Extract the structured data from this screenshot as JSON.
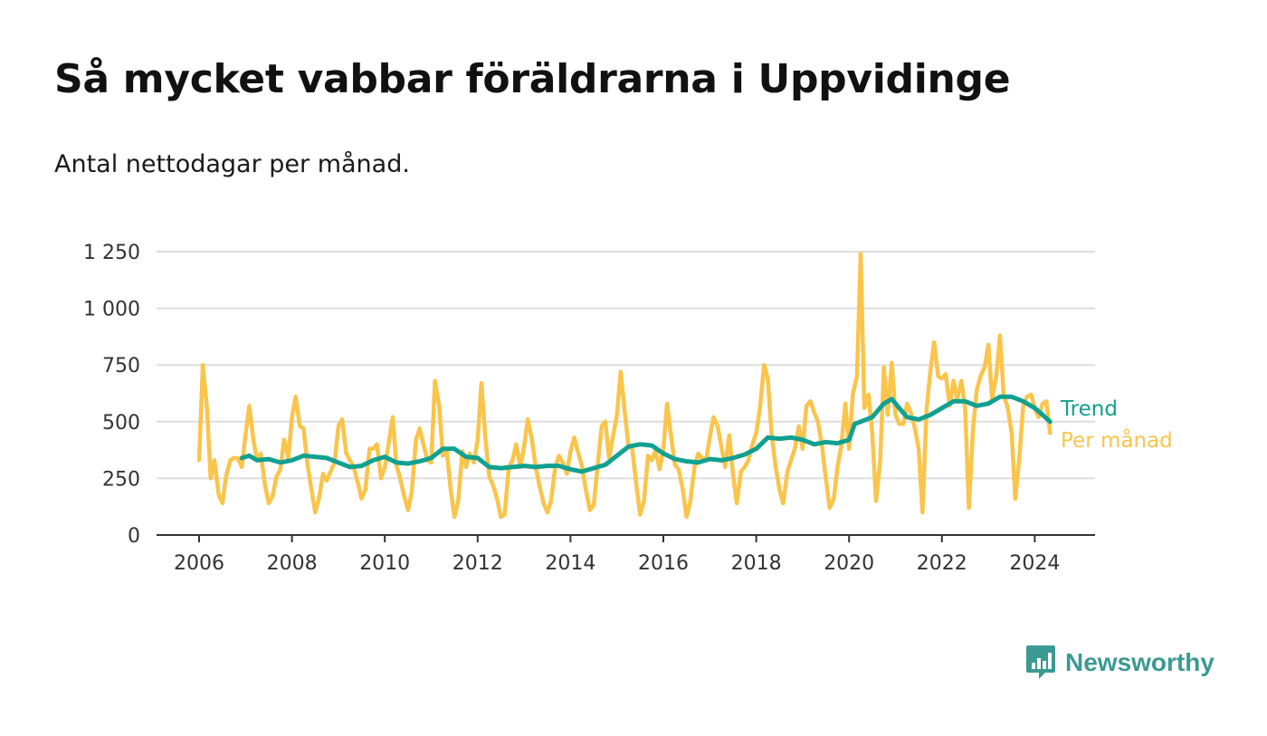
{
  "title": "Så mycket vabbar föräldrarna i Uppvidinge",
  "subtitle": "Antal nettodagar per månad.",
  "brand": {
    "name": "Newsworthy",
    "icon": "newsworthy-logo-icon"
  },
  "colors": {
    "monthly": "#fbc44a",
    "trend": "#12a090",
    "grid": "#dddddd",
    "axis": "#333333",
    "brand": "#3b9a92"
  },
  "chart_data": {
    "type": "line",
    "title": "Så mycket vabbar föräldrarna i Uppvidinge",
    "subtitle": "Antal nettodagar per månad.",
    "xlabel": "",
    "ylabel": "",
    "xlim": [
      2005.6,
      2025.2
    ],
    "ylim": [
      0,
      1250
    ],
    "x_ticks": [
      2006,
      2008,
      2010,
      2012,
      2014,
      2016,
      2018,
      2020,
      2022,
      2024
    ],
    "y_ticks": [
      0,
      250,
      500,
      750,
      1000,
      1250
    ],
    "y_tick_labels": [
      "0",
      "250",
      "500",
      "750",
      "1 000",
      "1 250"
    ],
    "grid": true,
    "legend": "direct labels at right end of lines",
    "series": [
      {
        "name": "Per månad",
        "color": "#fbc44a",
        "x": [
          2006.0,
          2006.08,
          2006.17,
          2006.25,
          2006.33,
          2006.42,
          2006.5,
          2006.58,
          2006.67,
          2006.75,
          2006.83,
          2006.92,
          2007.0,
          2007.08,
          2007.17,
          2007.25,
          2007.33,
          2007.42,
          2007.5,
          2007.58,
          2007.67,
          2007.75,
          2007.83,
          2007.92,
          2008.0,
          2008.08,
          2008.17,
          2008.25,
          2008.33,
          2008.42,
          2008.5,
          2008.58,
          2008.67,
          2008.75,
          2008.83,
          2008.92,
          2009.0,
          2009.08,
          2009.17,
          2009.25,
          2009.33,
          2009.42,
          2009.5,
          2009.58,
          2009.67,
          2009.75,
          2009.83,
          2009.92,
          2010.0,
          2010.08,
          2010.17,
          2010.25,
          2010.33,
          2010.42,
          2010.5,
          2010.58,
          2010.67,
          2010.75,
          2010.83,
          2010.92,
          2011.0,
          2011.08,
          2011.17,
          2011.25,
          2011.33,
          2011.42,
          2011.5,
          2011.58,
          2011.67,
          2011.75,
          2011.83,
          2011.92,
          2012.0,
          2012.08,
          2012.17,
          2012.25,
          2012.33,
          2012.42,
          2012.5,
          2012.58,
          2012.67,
          2012.75,
          2012.83,
          2012.92,
          2013.0,
          2013.08,
          2013.17,
          2013.25,
          2013.33,
          2013.42,
          2013.5,
          2013.58,
          2013.67,
          2013.75,
          2013.83,
          2013.92,
          2014.0,
          2014.08,
          2014.17,
          2014.25,
          2014.33,
          2014.42,
          2014.5,
          2014.58,
          2014.67,
          2014.75,
          2014.83,
          2014.92,
          2015.0,
          2015.08,
          2015.17,
          2015.25,
          2015.33,
          2015.42,
          2015.5,
          2015.58,
          2015.67,
          2015.75,
          2015.83,
          2015.92,
          2016.0,
          2016.08,
          2016.17,
          2016.25,
          2016.33,
          2016.42,
          2016.5,
          2016.58,
          2016.67,
          2016.75,
          2016.83,
          2016.92,
          2017.0,
          2017.08,
          2017.17,
          2017.25,
          2017.33,
          2017.42,
          2017.5,
          2017.58,
          2017.67,
          2017.75,
          2017.83,
          2017.92,
          2018.0,
          2018.08,
          2018.17,
          2018.25,
          2018.33,
          2018.42,
          2018.5,
          2018.58,
          2018.67,
          2018.75,
          2018.83,
          2018.92,
          2019.0,
          2019.08,
          2019.17,
          2019.25,
          2019.33,
          2019.42,
          2019.5,
          2019.58,
          2019.67,
          2019.75,
          2019.83,
          2019.92,
          2020.0,
          2020.08,
          2020.17,
          2020.25,
          2020.33,
          2020.42,
          2020.5,
          2020.58,
          2020.67,
          2020.75,
          2020.83,
          2020.92,
          2021.0,
          2021.08,
          2021.17,
          2021.25,
          2021.33,
          2021.42,
          2021.5,
          2021.58,
          2021.67,
          2021.75,
          2021.83,
          2021.92,
          2022.0,
          2022.08,
          2022.17,
          2022.25,
          2022.33,
          2022.42,
          2022.5,
          2022.58,
          2022.67,
          2022.75,
          2022.83,
          2022.92,
          2023.0,
          2023.08,
          2023.17,
          2023.25,
          2023.33,
          2023.42,
          2023.5,
          2023.58,
          2023.67,
          2023.75,
          2023.83,
          2023.92,
          2024.0,
          2024.08,
          2024.17,
          2024.25,
          2024.33
        ],
        "y": [
          330,
          750,
          560,
          250,
          330,
          180,
          140,
          260,
          330,
          340,
          340,
          300,
          440,
          570,
          420,
          330,
          360,
          220,
          140,
          170,
          260,
          290,
          420,
          340,
          520,
          610,
          480,
          470,
          320,
          200,
          100,
          160,
          270,
          240,
          280,
          320,
          480,
          510,
          360,
          330,
          300,
          230,
          160,
          200,
          380,
          380,
          400,
          250,
          300,
          400,
          520,
          310,
          250,
          170,
          110,
          190,
          420,
          470,
          400,
          330,
          320,
          680,
          570,
          350,
          380,
          200,
          80,
          150,
          370,
          300,
          360,
          320,
          420,
          670,
          420,
          260,
          220,
          160,
          80,
          90,
          300,
          330,
          400,
          300,
          390,
          510,
          420,
          300,
          220,
          140,
          100,
          150,
          300,
          350,
          320,
          270,
          370,
          430,
          360,
          300,
          200,
          110,
          130,
          300,
          480,
          500,
          340,
          440,
          530,
          720,
          540,
          390,
          380,
          220,
          90,
          150,
          350,
          330,
          370,
          290,
          380,
          580,
          430,
          310,
          290,
          200,
          80,
          150,
          300,
          360,
          340,
          330,
          430,
          520,
          480,
          390,
          300,
          440,
          270,
          140,
          280,
          300,
          330,
          400,
          450,
          560,
          750,
          690,
          450,
          300,
          200,
          140,
          280,
          330,
          380,
          480,
          380,
          570,
          590,
          540,
          500,
          390,
          250,
          120,
          160,
          300,
          390,
          580,
          380,
          620,
          700,
          1240,
          560,
          620,
          450,
          150,
          330,
          740,
          530,
          760,
          530,
          490,
          490,
          580,
          540,
          470,
          380,
          100,
          560,
          720,
          850,
          700,
          690,
          710,
          570,
          680,
          600,
          680,
          560,
          120,
          470,
          640,
          700,
          740,
          840,
          600,
          700,
          880,
          620,
          560,
          450,
          160,
          350,
          570,
          610,
          620,
          560,
          520,
          580,
          590,
          450
        ]
      },
      {
        "name": "Trend",
        "color": "#12a090",
        "x": [
          2006.92,
          2007.08,
          2007.25,
          2007.5,
          2007.75,
          2008.0,
          2008.25,
          2008.5,
          2008.75,
          2009.0,
          2009.25,
          2009.5,
          2009.75,
          2010.0,
          2010.25,
          2010.5,
          2010.75,
          2011.0,
          2011.25,
          2011.5,
          2011.75,
          2012.0,
          2012.25,
          2012.5,
          2012.75,
          2013.0,
          2013.25,
          2013.5,
          2013.75,
          2014.0,
          2014.25,
          2014.5,
          2014.75,
          2015.0,
          2015.25,
          2015.5,
          2015.75,
          2016.0,
          2016.25,
          2016.5,
          2016.75,
          2017.0,
          2017.25,
          2017.5,
          2017.75,
          2018.0,
          2018.25,
          2018.5,
          2018.75,
          2019.0,
          2019.25,
          2019.5,
          2019.75,
          2020.0,
          2020.12,
          2020.25,
          2020.5,
          2020.75,
          2020.92,
          2021.08,
          2021.25,
          2021.5,
          2021.75,
          2022.0,
          2022.25,
          2022.5,
          2022.75,
          2023.0,
          2023.25,
          2023.5,
          2023.75,
          2024.0,
          2024.17,
          2024.33
        ],
        "y": [
          340,
          350,
          330,
          335,
          320,
          330,
          350,
          345,
          340,
          320,
          300,
          305,
          330,
          345,
          320,
          315,
          325,
          340,
          380,
          380,
          345,
          340,
          300,
          295,
          300,
          305,
          300,
          305,
          305,
          290,
          280,
          295,
          310,
          350,
          390,
          400,
          395,
          360,
          335,
          325,
          320,
          335,
          330,
          340,
          355,
          380,
          430,
          425,
          430,
          420,
          400,
          410,
          405,
          420,
          490,
          500,
          520,
          580,
          600,
          560,
          520,
          510,
          530,
          560,
          590,
          590,
          570,
          580,
          610,
          610,
          590,
          560,
          530,
          500
        ]
      }
    ]
  }
}
